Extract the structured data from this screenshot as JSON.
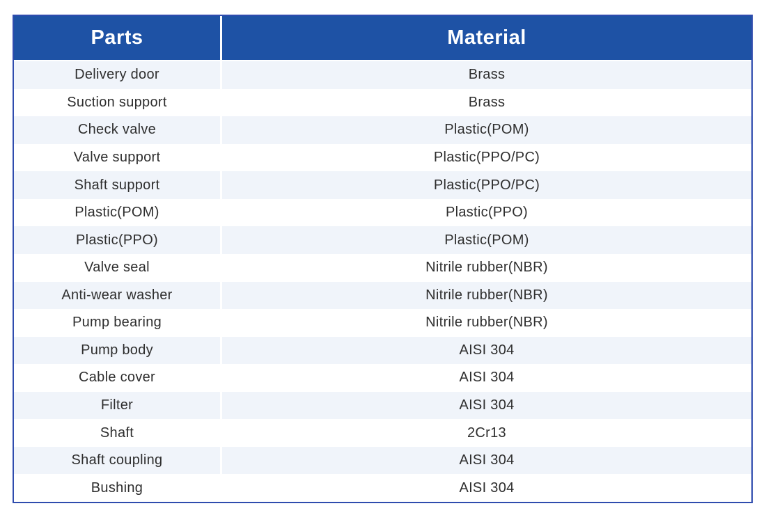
{
  "table": {
    "headers": {
      "parts": "Parts",
      "material": "Material"
    },
    "rows": [
      {
        "part": "Delivery door",
        "material": "Brass"
      },
      {
        "part": "Suction support",
        "material": "Brass"
      },
      {
        "part": "Check valve",
        "material": "Plastic(POM)"
      },
      {
        "part": "Valve support",
        "material": "Plastic(PPO/PC)"
      },
      {
        "part": "Shaft support",
        "material": "Plastic(PPO/PC)"
      },
      {
        "part": "Plastic(POM)",
        "material": "Plastic(PPO)"
      },
      {
        "part": "Plastic(PPO)",
        "material": "Plastic(POM)"
      },
      {
        "part": "Valve seal",
        "material": "Nitrile rubber(NBR)"
      },
      {
        "part": "Anti-wear washer",
        "material": "Nitrile rubber(NBR)"
      },
      {
        "part": "Pump bearing",
        "material": "Nitrile rubber(NBR)"
      },
      {
        "part": "Pump body",
        "material": "AISI 304"
      },
      {
        "part": "Cable cover",
        "material": "AISI 304"
      },
      {
        "part": "Filter",
        "material": "AISI 304"
      },
      {
        "part": "Shaft",
        "material": "2Cr13"
      },
      {
        "part": "Shaft coupling",
        "material": "AISI 304"
      },
      {
        "part": "Bushing",
        "material": "AISI 304"
      }
    ],
    "colors": {
      "header_bg": "#1e52a5",
      "header_text": "#ffffff",
      "row_bg": "#ffffff",
      "row_alt_bg": "#f0f4fa",
      "outer_border": "#2f4cae",
      "body_text": "#2e2e2e",
      "column_divider": "#ffffff"
    }
  }
}
